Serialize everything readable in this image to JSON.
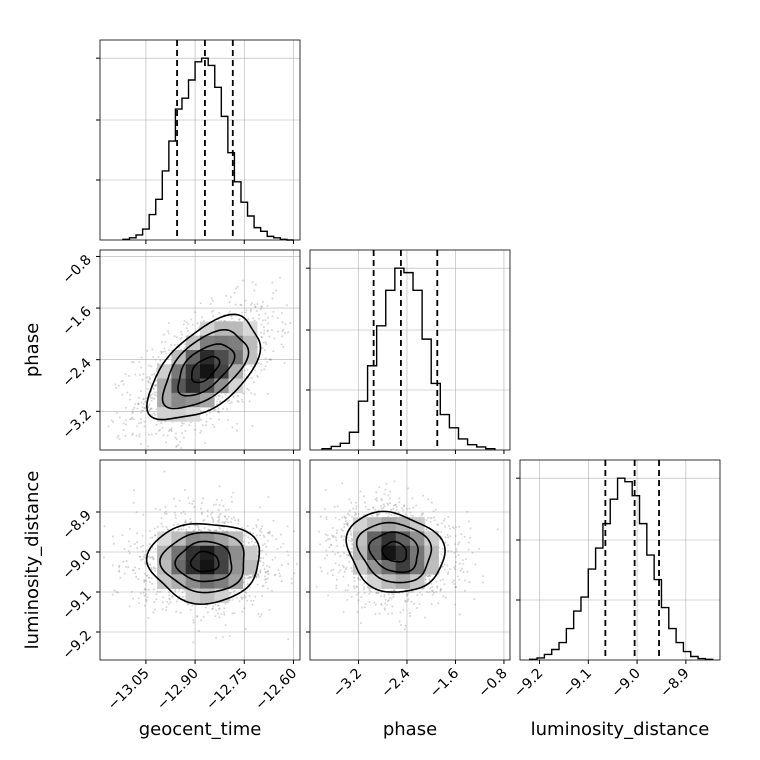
{
  "figure": {
    "type": "corner_plot",
    "background": "#ffffff",
    "line_color": "#000000",
    "grid_color": "#b0b0b0"
  },
  "chart_data": [
    {
      "type": "histogram",
      "variable": "geocent_time",
      "xlim": [
        -13.19,
        -12.58
      ],
      "x_ticks": [
        -13.05,
        -12.9,
        -12.75,
        -12.6
      ],
      "bin_edges": [
        -13.12,
        -13.1,
        -13.08,
        -13.06,
        -13.04,
        -13.02,
        -13.0,
        -12.98,
        -12.96,
        -12.94,
        -12.92,
        -12.9,
        -12.88,
        -12.86,
        -12.84,
        -12.82,
        -12.8,
        -12.78,
        -12.76,
        -12.74,
        -12.72,
        -12.7,
        -12.68,
        -12.66,
        -12.64,
        -12.62,
        -12.6
      ],
      "counts": [
        1,
        3,
        7,
        15,
        35,
        56,
        95,
        136,
        180,
        195,
        220,
        245,
        250,
        240,
        210,
        170,
        120,
        80,
        52,
        33,
        17,
        12,
        5,
        3,
        1,
        0
      ],
      "quantiles": [
        -12.955,
        -12.87,
        -12.785
      ]
    },
    {
      "type": "scatter_density",
      "x_variable": "geocent_time",
      "y_variable": "phase",
      "xlim": [
        -13.19,
        -12.58
      ],
      "ylim": [
        -3.8,
        -0.7
      ],
      "x_ticks": [
        -13.05,
        -12.9,
        -12.75,
        -12.6
      ],
      "y_ticks": [
        -0.8,
        -1.6,
        -2.4,
        -3.2
      ],
      "center": [
        -12.87,
        -2.55
      ],
      "std": [
        0.085,
        0.4
      ],
      "correlation": 0.55,
      "contour_levels": [
        "0.5σ",
        "1σ",
        "1.5σ",
        "2σ"
      ]
    },
    {
      "type": "histogram",
      "variable": "phase",
      "xlim": [
        -4.0,
        -0.7
      ],
      "x_ticks": [
        -3.2,
        -2.4,
        -1.6,
        -0.8
      ],
      "bin_edges": [
        -3.8,
        -3.65,
        -3.5,
        -3.35,
        -3.2,
        -3.05,
        -2.9,
        -2.75,
        -2.6,
        -2.45,
        -2.3,
        -2.15,
        -2.0,
        -1.85,
        -1.7,
        -1.55,
        -1.4,
        -1.25,
        -1.1,
        -0.95
      ],
      "counts": [
        3,
        8,
        15,
        40,
        110,
        190,
        280,
        360,
        410,
        400,
        360,
        250,
        150,
        80,
        50,
        25,
        12,
        7,
        3
      ],
      "quantiles": [
        -2.95,
        -2.5,
        -1.9
      ]
    },
    {
      "type": "scatter_density",
      "x_variable": "geocent_time",
      "y_variable": "luminosity_distance",
      "xlim": [
        -13.19,
        -12.58
      ],
      "ylim": [
        -9.27,
        -8.77
      ],
      "x_ticks": [
        -13.05,
        -12.9,
        -12.75,
        -12.6
      ],
      "y_ticks": [
        -8.9,
        -9.0,
        -9.1,
        -9.2
      ],
      "center": [
        -12.87,
        -9.025
      ],
      "std": [
        0.085,
        0.05
      ],
      "correlation": 0.0,
      "contour_levels": [
        "0.5σ",
        "1σ",
        "1.5σ",
        "2σ"
      ]
    },
    {
      "type": "scatter_density",
      "x_variable": "phase",
      "y_variable": "luminosity_distance",
      "xlim": [
        -4.0,
        -0.7
      ],
      "ylim": [
        -9.27,
        -8.77
      ],
      "x_ticks": [
        -3.2,
        -2.4,
        -1.6,
        -0.8
      ],
      "y_ticks": [
        -8.9,
        -9.0,
        -9.1,
        -9.2
      ],
      "center": [
        -2.6,
        -9.0
      ],
      "std": [
        0.4,
        0.05
      ],
      "correlation": -0.15,
      "contour_levels": [
        "0.5σ",
        "1σ",
        "1.5σ",
        "2σ"
      ]
    },
    {
      "type": "histogram",
      "variable": "luminosity_distance",
      "xlim": [
        -9.24,
        -8.83
      ],
      "x_ticks": [
        -9.2,
        -9.1,
        -9.0,
        -8.9
      ],
      "bin_edges": [
        -9.22,
        -9.205,
        -9.19,
        -9.175,
        -9.16,
        -9.145,
        -9.13,
        -9.115,
        -9.1,
        -9.085,
        -9.07,
        -9.055,
        -9.04,
        -9.025,
        -9.01,
        -8.995,
        -8.98,
        -8.965,
        -8.95,
        -8.935,
        -8.92,
        -8.905,
        -8.89,
        -8.875,
        -8.86,
        -8.845
      ],
      "counts": [
        1,
        3,
        8,
        15,
        25,
        45,
        70,
        90,
        130,
        160,
        195,
        230,
        260,
        255,
        235,
        195,
        150,
        115,
        75,
        45,
        25,
        12,
        5,
        2,
        1
      ],
      "quantiles": [
        -9.065,
        -9.005,
        -8.955
      ]
    }
  ],
  "tick_labels": {
    "geocent_time": [
      "−13.05",
      "−12.90",
      "−12.75",
      "−12.60"
    ],
    "phase": [
      "−0.8",
      "−1.6",
      "−2.4",
      "−3.2"
    ],
    "phase_x": [
      "−3.2",
      "−2.4",
      "−1.6",
      "−0.8"
    ],
    "luminosity_distance": [
      "−8.9",
      "−9.0",
      "−9.1",
      "−9.2"
    ],
    "luminosity_distance_x": [
      "−9.2",
      "−9.1",
      "−9.0",
      "−8.9"
    ]
  },
  "labels": {
    "geocent_time": "geocent_time",
    "phase": "phase",
    "luminosity_distance": "luminosity_distance"
  }
}
